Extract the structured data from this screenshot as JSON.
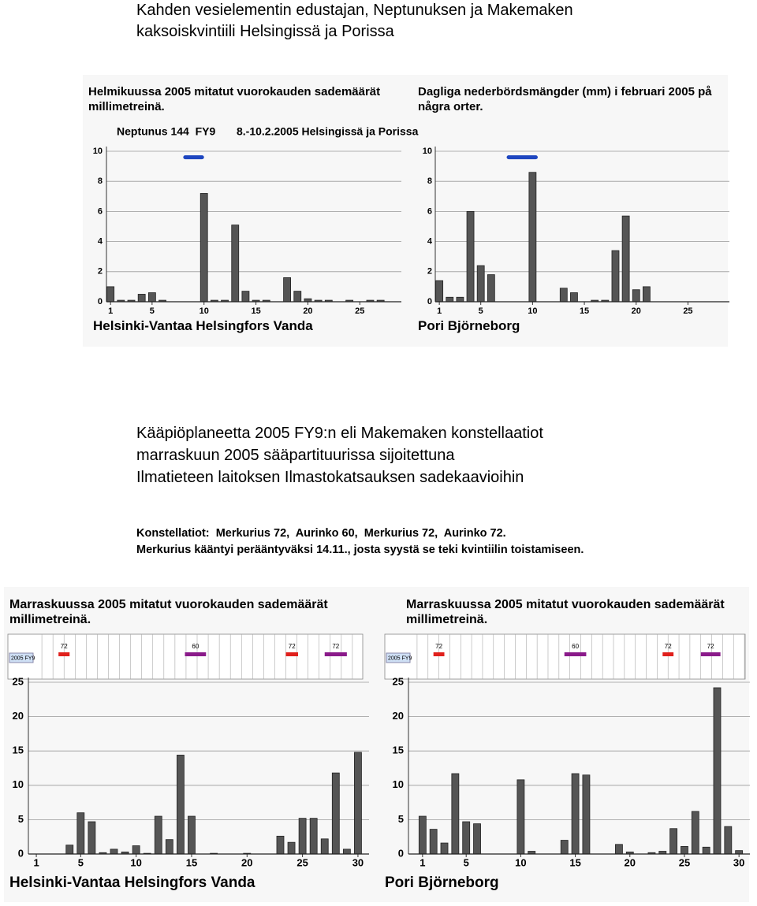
{
  "heading": [
    "Kahden vesielementin edustajan, Neptunuksen ja Makemaken",
    "kaksoiskvintiili Helsingissä ja Porissa"
  ],
  "caption": [
    "Kääpiöplaneetta 2005 FY9:n eli Makemaken konstellaatiot",
    "marraskuun 2005 sääpartituurissa sijoitettuna",
    "Ilmatieteen laitoksen Ilmastokatsauksen sadekaavioihin"
  ],
  "note": [
    "Konstellatiot:  Merkurius 72,  Aurinko 60,  Merkurius 72,  Aurinko 72.",
    "Merkurius kääntyi perääntyväksi 14.11., josta syystä se teki kvintiilin toistamiseen."
  ],
  "chart_data": [
    {
      "type": "bar",
      "title": "Helmikuussa 2005 mitatut vuorokauden sademäärät millimetreinä.",
      "annotations": [
        "Neptunus 144  FY9",
        "8.-10.2.2005 Helsingissä ja Porissa"
      ],
      "footer": "Helsinki-Vantaa Helsingfors Vanda",
      "color": "#555555",
      "grid": true,
      "x": [
        1,
        2,
        3,
        4,
        5,
        6,
        10,
        11,
        12,
        13,
        14,
        15,
        16,
        18,
        19,
        20,
        21,
        22,
        24,
        26,
        27
      ],
      "values": [
        1.0,
        0.1,
        0.1,
        0.5,
        0.6,
        0.1,
        7.2,
        0.1,
        0.1,
        5.1,
        0.7,
        0.1,
        0.1,
        1.6,
        0.7,
        0.2,
        0.1,
        0.1,
        0.1,
        0.1,
        0.1
      ],
      "xlim": [
        0,
        29
      ],
      "xticks": [
        1,
        5,
        10,
        15,
        20,
        25
      ],
      "ylim": [
        0,
        10
      ],
      "yticks": [
        0,
        2,
        4,
        6,
        8,
        10
      ],
      "markers": [
        {
          "from": 8,
          "to": 10,
          "y": 9.6,
          "color": "#1e46c0"
        }
      ]
    },
    {
      "type": "bar",
      "title": "Dagliga nederbördsmängder (mm) i februari 2005 på några orter.",
      "footer": "Pori Björneborg",
      "color": "#555555",
      "grid": true,
      "x": [
        1,
        2,
        3,
        4,
        5,
        6,
        10,
        13,
        14,
        16,
        17,
        18,
        19,
        20,
        21
      ],
      "values": [
        1.4,
        0.3,
        0.3,
        6.0,
        2.4,
        1.8,
        8.6,
        0.9,
        0.6,
        0.1,
        0.1,
        3.4,
        5.7,
        0.8,
        1.0
      ],
      "xlim": [
        0,
        29
      ],
      "xticks": [
        1,
        5,
        10,
        15,
        20,
        25
      ],
      "ylim": [
        0,
        10
      ],
      "yticks": [
        0,
        2,
        4,
        6,
        8,
        10
      ],
      "markers": [
        {
          "from": 7.5,
          "to": 10.5,
          "y": 9.6,
          "color": "#1e46c0"
        }
      ]
    },
    {
      "type": "bar",
      "title": "Marraskuussa 2005 mitatut vuorokauden sademäärät millimetreinä.",
      "footer": "Helsinki-Vantaa Helsingfors Vanda",
      "color": "#555555",
      "grid": true,
      "strip_label": "2005 FY9",
      "x": [
        4,
        5,
        6,
        7,
        8,
        9,
        10,
        11,
        12,
        13,
        14,
        15,
        17,
        20,
        23,
        24,
        25,
        26,
        27,
        28,
        29,
        30
      ],
      "values": [
        1.3,
        6.0,
        4.7,
        0.2,
        0.7,
        0.3,
        1.2,
        0.1,
        5.5,
        2.1,
        14.4,
        5.5,
        0.1,
        0.1,
        2.6,
        1.7,
        5.2,
        5.2,
        2.2,
        11.8,
        0.7,
        14.8
      ],
      "xlim": [
        0,
        31
      ],
      "xticks": [
        1,
        5,
        10,
        15,
        20,
        25,
        30
      ],
      "ylim": [
        0,
        25
      ],
      "yticks": [
        0,
        5,
        10,
        15,
        20,
        25
      ],
      "markers": [
        {
          "label": "72",
          "from": 3,
          "to": 4,
          "color": "#e0201c"
        },
        {
          "label": "60",
          "from": 14.4,
          "to": 16.3,
          "color": "#8a1a8a"
        },
        {
          "label": "72",
          "from": 23.5,
          "to": 24.6,
          "color": "#e0201c"
        },
        {
          "label": "72",
          "from": 27,
          "to": 29,
          "color": "#8a1a8a"
        }
      ]
    },
    {
      "type": "bar",
      "title": "Marraskuussa 2005 mitatut vuorokauden sademäärät millimetreinä.",
      "footer": "Pori Björneborg",
      "color": "#555555",
      "grid": true,
      "strip_label": "2005 FY9",
      "x": [
        1,
        2,
        3,
        4,
        5,
        6,
        10,
        11,
        14,
        15,
        16,
        19,
        20,
        22,
        23,
        24,
        25,
        26,
        27,
        28,
        29,
        30
      ],
      "values": [
        5.5,
        3.6,
        1.6,
        11.7,
        4.7,
        4.4,
        10.8,
        0.4,
        2.0,
        11.7,
        11.5,
        1.4,
        0.3,
        0.2,
        0.4,
        3.7,
        1.1,
        6.2,
        1.0,
        24.2,
        4.0,
        0.5
      ],
      "xlim": [
        0,
        31
      ],
      "xticks": [
        1,
        5,
        10,
        15,
        20,
        25,
        30
      ],
      "ylim": [
        0,
        25
      ],
      "yticks": [
        0,
        5,
        10,
        15,
        20,
        25
      ],
      "markers": [
        {
          "label": "72",
          "from": 2,
          "to": 3,
          "color": "#e0201c"
        },
        {
          "label": "60",
          "from": 14,
          "to": 16,
          "color": "#8a1a8a"
        },
        {
          "label": "72",
          "from": 23,
          "to": 24,
          "color": "#e0201c"
        },
        {
          "label": "72",
          "from": 26.5,
          "to": 28.3,
          "color": "#8a1a8a"
        }
      ]
    }
  ]
}
